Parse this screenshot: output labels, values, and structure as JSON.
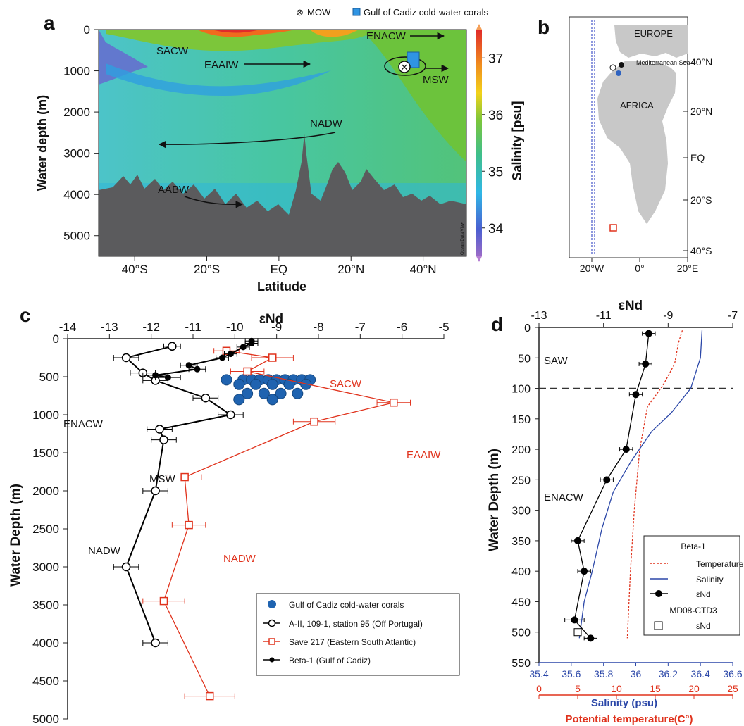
{
  "panels": {
    "a": "a",
    "b": "b",
    "c": "c",
    "d": "d"
  },
  "chart_data": [
    {
      "panel": "a",
      "type": "heatmap",
      "xlabel": "Latitude",
      "ylabel": "Water depth (m)",
      "x_ticks": [
        "40°S",
        "20°S",
        "EQ",
        "20°N",
        "40°N"
      ],
      "x_tick_values": [
        -40,
        -20,
        0,
        20,
        40
      ],
      "xlim": [
        -50,
        52
      ],
      "y_ticks": [
        0,
        1000,
        2000,
        3000,
        4000,
        5000
      ],
      "ylim": [
        5500,
        0
      ],
      "colorbar": {
        "label": "Salinity [psu]",
        "ticks": [
          34,
          35,
          36,
          37
        ],
        "range": [
          33.5,
          37.5
        ]
      },
      "legend": [
        {
          "symbol": "⊗",
          "label": "MOW"
        },
        {
          "symbol": "square",
          "label": "Gulf of Cadiz cold-water corals"
        }
      ],
      "water_masses": [
        {
          "label": "SACW",
          "arrow": "none"
        },
        {
          "label": "ENACW",
          "arrow": "right"
        },
        {
          "label": "EAAIW",
          "arrow": "right"
        },
        {
          "label": "MSW",
          "arrow": "right"
        },
        {
          "label": "NADW",
          "arrow": "left"
        },
        {
          "label": "AABW",
          "arrow": "right"
        }
      ],
      "watermark": "Ocean Data View"
    },
    {
      "panel": "b",
      "type": "map",
      "labels": [
        "EUROPE",
        "Mediterranean Sea",
        "AFRICA"
      ],
      "lat_ticks": [
        "40°N",
        "20°N",
        "EQ",
        "20°S",
        "40°S"
      ],
      "lon_ticks": [
        "20°W",
        "0°",
        "20°E"
      ]
    },
    {
      "panel": "c",
      "type": "line",
      "xlabel": "εNd",
      "ylabel": "Water Depth (m)",
      "xlim": [
        -14,
        -5
      ],
      "ylim": [
        5000,
        0
      ],
      "x_ticks": [
        -14,
        -13,
        -12,
        -11,
        -10,
        -9,
        -8,
        -7,
        -6,
        -5
      ],
      "y_ticks": [
        0,
        500,
        1000,
        1500,
        2000,
        2500,
        3000,
        3500,
        4000,
        4500,
        5000
      ],
      "series": [
        {
          "name": "Gulf of Cadiz cold-water corals",
          "color": "#1f63b0",
          "marker": "filled-circle-large",
          "points": [
            [
              -10.2,
              540
            ],
            [
              -9.8,
              540
            ],
            [
              -9.6,
              540
            ],
            [
              -9.4,
              540
            ],
            [
              -9.2,
              540
            ],
            [
              -9.0,
              540
            ],
            [
              -8.8,
              540
            ],
            [
              -8.6,
              540
            ],
            [
              -8.4,
              540
            ],
            [
              -8.2,
              540
            ],
            [
              -9.9,
              600
            ],
            [
              -9.5,
              600
            ],
            [
              -9.1,
              600
            ],
            [
              -8.7,
              600
            ],
            [
              -8.3,
              600
            ],
            [
              -9.7,
              720
            ],
            [
              -9.3,
              720
            ],
            [
              -8.9,
              720
            ],
            [
              -8.5,
              720
            ],
            [
              -9.9,
              800
            ],
            [
              -9.1,
              800
            ]
          ]
        },
        {
          "name": "A-II, 109-1, station 95 (Off Portugal)",
          "color": "#000000",
          "marker": "open-circle",
          "points": [
            [
              -11.5,
              100,
              0.2
            ],
            [
              -12.6,
              250,
              0.3
            ],
            [
              -12.2,
              450,
              0.3
            ],
            [
              -11.9,
              550,
              0.3
            ],
            [
              -10.7,
              780,
              0.3
            ],
            [
              -10.1,
              1000,
              0.3
            ],
            [
              -11.8,
              1190,
              0.3
            ],
            [
              -11.7,
              1330,
              0.3
            ],
            [
              -11.9,
              2000,
              0.3
            ],
            [
              -12.6,
              3000,
              0.3
            ],
            [
              -11.9,
              4000,
              0.3
            ]
          ]
        },
        {
          "name": "Save 217 (Eastern South Atlantic)",
          "color": "#e0321c",
          "marker": "open-square",
          "points": [
            [
              -10.2,
              160,
              0.3
            ],
            [
              -9.1,
              250,
              0.5
            ],
            [
              -9.7,
              430,
              0.4
            ],
            [
              -6.2,
              840,
              0.4
            ],
            [
              -8.1,
              1090,
              0.5
            ],
            [
              -11.2,
              1820,
              0.4
            ],
            [
              -11.1,
              2450,
              0.4
            ],
            [
              -11.7,
              3450,
              0.5
            ],
            [
              -10.6,
              4700,
              0.6
            ]
          ]
        },
        {
          "name": "Beta-1 (Gulf of Cadiz)",
          "color": "#000000",
          "marker": "filled-circle",
          "points": [
            [
              -9.6,
              30,
              0.15
            ],
            [
              -9.6,
              60,
              0.15
            ],
            [
              -9.8,
              110,
              0.15
            ],
            [
              -10.1,
              200,
              0.15
            ],
            [
              -10.3,
              250,
              0.15
            ],
            [
              -11.1,
              350,
              0.2
            ],
            [
              -10.9,
              400,
              0.2
            ],
            [
              -11.9,
              480,
              0.3
            ],
            [
              -11.6,
              510,
              0.3
            ]
          ]
        }
      ],
      "annotations": [
        {
          "label": "SACW",
          "color": "#e0321c"
        },
        {
          "label": "EAAIW",
          "color": "#e0321c"
        },
        {
          "label": "NADW",
          "color": "#e0321c"
        },
        {
          "label": "ENACW",
          "color": "#111111"
        },
        {
          "label": "MSW",
          "color": "#111111"
        },
        {
          "label": "NADW",
          "color": "#111111"
        }
      ]
    },
    {
      "panel": "d",
      "type": "line",
      "xlabel_top": "εNd",
      "ylabel": "Water Depth (m)",
      "ylim": [
        550,
        0
      ],
      "y_ticks": [
        0,
        50,
        100,
        150,
        200,
        250,
        300,
        350,
        400,
        450,
        500,
        550
      ],
      "axes": {
        "end": {
          "label": "εNd",
          "range": [
            -13,
            -7
          ],
          "ticks": [
            -13,
            -11,
            -9,
            -7
          ]
        },
        "salinity": {
          "label": "Salinity (psu)",
          "color": "#2b47a8",
          "range": [
            35.4,
            36.6
          ],
          "ticks": [
            35.4,
            35.6,
            35.8,
            36,
            36.2,
            36.4,
            36.6
          ]
        },
        "temperature": {
          "label": "Potential temperature(C°)",
          "color": "#e0321c",
          "range": [
            0,
            25
          ],
          "ticks": [
            0,
            5,
            10,
            15,
            20,
            25
          ]
        }
      },
      "series": [
        {
          "name": "Beta-1 εNd",
          "color": "#000000",
          "axis": "end",
          "marker": "filled-circle",
          "points": [
            [
              -9.6,
              10,
              0.2
            ],
            [
              -9.7,
              60,
              0.2
            ],
            [
              -10.0,
              110,
              0.2
            ],
            [
              -10.3,
              200,
              0.2
            ],
            [
              -10.9,
              250,
              0.2
            ],
            [
              -11.8,
              350,
              0.2
            ],
            [
              -11.6,
              400,
              0.2
            ],
            [
              -11.9,
              480,
              0.3
            ],
            [
              -11.4,
              510,
              0.2
            ]
          ]
        },
        {
          "name": "MD08-CTD3 εNd",
          "color": "#000000",
          "axis": "end",
          "marker": "open-square",
          "points": [
            [
              -11.8,
              500,
              0.2
            ]
          ]
        },
        {
          "name": "Temperature",
          "color": "#e0321c",
          "axis": "temperature",
          "style": "dashed",
          "points": [
            [
              18.5,
              5
            ],
            [
              18.0,
              25
            ],
            [
              17.5,
              60
            ],
            [
              16.0,
              95
            ],
            [
              14.0,
              130
            ],
            [
              13.0,
              200
            ],
            [
              12.3,
              300
            ],
            [
              11.8,
              400
            ],
            [
              11.4,
              510
            ]
          ]
        },
        {
          "name": "Salinity",
          "color": "#2b47a8",
          "axis": "salinity",
          "points": [
            [
              36.41,
              5
            ],
            [
              36.4,
              50
            ],
            [
              36.34,
              100
            ],
            [
              36.22,
              140
            ],
            [
              36.1,
              170
            ],
            [
              35.97,
              220
            ],
            [
              35.86,
              270
            ],
            [
              35.79,
              330
            ],
            [
              35.73,
              400
            ],
            [
              35.68,
              450
            ],
            [
              35.65,
              510
            ]
          ]
        }
      ],
      "dashed_line_depth": 100,
      "annotations": [
        "SAW",
        "ENACW"
      ],
      "legend": {
        "group1": "Beta-1",
        "temperature": "Temperature",
        "salinity": "Salinity",
        "end1": "εNd",
        "group2": "MD08-CTD3",
        "end2": "εNd"
      }
    }
  ]
}
